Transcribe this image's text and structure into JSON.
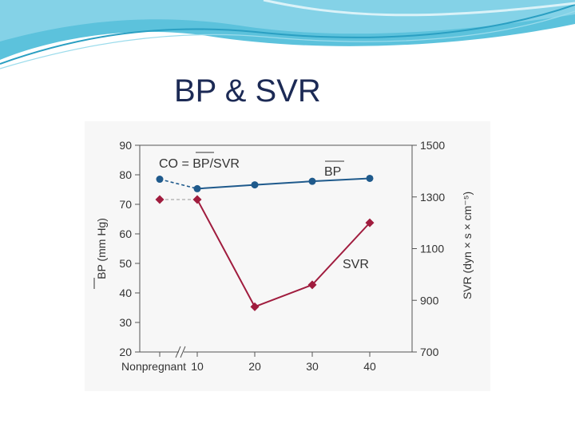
{
  "slide": {
    "title": "BP & SVR",
    "colors": {
      "accent": "#3fb7d6",
      "title": "#1c2a55"
    }
  },
  "chart_data": {
    "type": "line",
    "title": "",
    "annotation": "CO = BP/SVR",
    "x": [
      "Nonpregnant",
      "10",
      "20",
      "30",
      "40"
    ],
    "x_tick_labels": [
      "Nonpregnant",
      "10",
      "20",
      "30",
      "40"
    ],
    "y_left": {
      "label": "BP (mm Hg)",
      "range": [
        20,
        90
      ],
      "ticks": [
        "20",
        "30",
        "40",
        "50",
        "60",
        "70",
        "80",
        "90"
      ]
    },
    "y_right": {
      "label": "SVR (dyn × s × cm⁻⁵)",
      "range": [
        700,
        1500
      ],
      "ticks": [
        "700",
        "900",
        "1100",
        "1300",
        "1500"
      ]
    },
    "series": [
      {
        "name": "BP",
        "axis": "left",
        "color": "#1f5a8c",
        "marker": "circle",
        "values": [
          78.5,
          75.3,
          76.6,
          77.8,
          78.8
        ]
      },
      {
        "name": "SVR",
        "axis": "right",
        "color": "#a01c3e",
        "marker": "diamond",
        "values": [
          1290,
          1290,
          875,
          960,
          1200
        ]
      }
    ],
    "dashed_segment": "Nonpregnant to 10",
    "axis_break": "between Nonpregnant and 10",
    "grid": false
  }
}
